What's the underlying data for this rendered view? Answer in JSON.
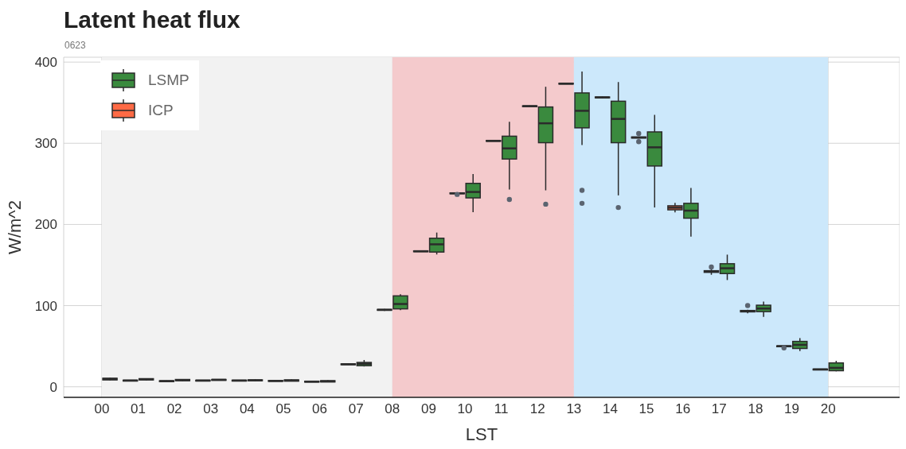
{
  "chart_data": {
    "type": "box",
    "title": "Latent heat flux",
    "subtitle": "0623",
    "xlabel": "LST",
    "ylabel": "W/m^2",
    "categories": [
      "00",
      "01",
      "02",
      "03",
      "04",
      "05",
      "06",
      "07",
      "08",
      "09",
      "10",
      "11",
      "12",
      "13",
      "14",
      "15",
      "16",
      "17",
      "18",
      "19",
      "20"
    ],
    "ylim": [
      -13,
      406
    ],
    "yticks": [
      0,
      100,
      200,
      300,
      400
    ],
    "grid": true,
    "legend": "top left",
    "bands": [
      {
        "axis": "x",
        "from": "00",
        "to": "08",
        "color": "#f2f2f2"
      },
      {
        "axis": "x",
        "from": "08",
        "to": "13",
        "color": "#f4cacc"
      },
      {
        "axis": "x",
        "from": "13",
        "to": "20",
        "color": "#cce8fb"
      }
    ],
    "series": [
      {
        "name": "LSMP",
        "color": "#3a8a3e",
        "boxes": [
          {
            "low": 8,
            "q1": 8.5,
            "median": 9.6,
            "q3": 10.5,
            "high": 11
          },
          {
            "low": 8,
            "q1": 8.5,
            "median": 9.3,
            "q3": 10,
            "high": 10.5
          },
          {
            "low": 7,
            "q1": 7.5,
            "median": 8.3,
            "q3": 9,
            "high": 9.5
          },
          {
            "low": 7.5,
            "q1": 8,
            "median": 8.6,
            "q3": 9,
            "high": 9.5
          },
          {
            "low": 7,
            "q1": 7.5,
            "median": 8,
            "q3": 8.5,
            "high": 9
          },
          {
            "low": 6.5,
            "q1": 7,
            "median": 7.7,
            "q3": 8.5,
            "high": 9
          },
          {
            "low": 5.5,
            "q1": 6,
            "median": 6.7,
            "q3": 7.5,
            "high": 8
          },
          {
            "low": 25,
            "q1": 26,
            "median": 28.4,
            "q3": 30,
            "high": 33
          },
          {
            "low": 94.5,
            "q1": 96,
            "median": 102,
            "q3": 112,
            "high": 114
          },
          {
            "low": 163,
            "q1": 166,
            "median": 175.5,
            "q3": 183,
            "high": 190
          },
          {
            "low": 215,
            "q1": 232.7,
            "median": 240,
            "q3": 250.6,
            "high": 262
          },
          {
            "low": 243,
            "q1": 280.6,
            "median": 293.7,
            "q3": 308.7,
            "high": 326.5,
            "outliers": [
              230.8
            ]
          },
          {
            "low": 242,
            "q1": 300.7,
            "median": 324.6,
            "q3": 344.7,
            "high": 369.6,
            "outliers": [
              225
            ]
          },
          {
            "low": 297.8,
            "q1": 319,
            "median": 340,
            "q3": 362,
            "high": 388.5,
            "outliers": [
              242,
              226
            ]
          },
          {
            "low": 235.8,
            "q1": 300.7,
            "median": 330,
            "q3": 351.8,
            "high": 375.4,
            "outliers": [
              220.9
            ]
          },
          {
            "low": 220.9,
            "q1": 272,
            "median": 295,
            "q3": 314,
            "high": 335
          },
          {
            "low": 185,
            "q1": 207.7,
            "median": 217,
            "q3": 226,
            "high": 245
          },
          {
            "low": 131.5,
            "q1": 139.5,
            "median": 146,
            "q3": 151.6,
            "high": 162.8
          },
          {
            "low": 86,
            "q1": 92.6,
            "median": 96.4,
            "q3": 100.5,
            "high": 105
          },
          {
            "low": 44,
            "q1": 47.2,
            "median": 51.7,
            "q3": 55.9,
            "high": 60
          },
          {
            "low": 19,
            "q1": 19.8,
            "median": 23.3,
            "q3": 29.4,
            "high": 32
          }
        ]
      },
      {
        "name": "ICP",
        "color": "#ff6a45",
        "boxes": [
          null,
          {
            "low": 7,
            "q1": 7.3,
            "median": 7.7,
            "q3": 8.1,
            "high": 8.4
          },
          {
            "low": 6.3,
            "q1": 6.6,
            "median": 7,
            "q3": 7.4,
            "high": 7.7
          },
          {
            "low": 7,
            "q1": 7.3,
            "median": 7.7,
            "q3": 8.1,
            "high": 8.4
          },
          {
            "low": 7,
            "q1": 7.3,
            "median": 7.7,
            "q3": 8.1,
            "high": 8.4
          },
          {
            "low": 6.6,
            "q1": 6.9,
            "median": 7.3,
            "q3": 7.7,
            "high": 8
          },
          {
            "low": 5.7,
            "q1": 6,
            "median": 6.4,
            "q3": 6.8,
            "high": 7.1
          },
          {
            "low": 27,
            "q1": 27.4,
            "median": 27.8,
            "q3": 28.2,
            "high": 28.6
          },
          {
            "low": 93.5,
            "q1": 94.3,
            "median": 94.8,
            "q3": 95.3,
            "high": 96
          },
          {
            "low": 166.3,
            "q1": 166.6,
            "median": 167,
            "q3": 167.4,
            "high": 167.7
          },
          {
            "low": 237.7,
            "q1": 238,
            "median": 238.4,
            "q3": 238.8,
            "high": 239.1,
            "outliers": [
              237
            ]
          },
          {
            "low": 302.3,
            "q1": 302.6,
            "median": 303,
            "q3": 303.4,
            "high": 303.7
          },
          {
            "low": 345,
            "q1": 345.3,
            "median": 345.7,
            "q3": 346.1,
            "high": 346.4
          },
          {
            "low": 372.8,
            "q1": 373.1,
            "median": 373.5,
            "q3": 373.9,
            "high": 374.2
          },
          {
            "low": 355.5,
            "q1": 356,
            "median": 356.5,
            "q3": 357,
            "high": 357.5
          },
          {
            "low": 306,
            "q1": 306.5,
            "median": 307.1,
            "q3": 307.7,
            "high": 308.2,
            "outliers": [
              312,
              302
            ]
          },
          {
            "low": 214.8,
            "q1": 218,
            "median": 220.6,
            "q3": 223,
            "high": 226.6
          },
          {
            "low": 138,
            "q1": 141,
            "median": 142,
            "q3": 143,
            "high": 145,
            "outliers": [
              147.5
            ]
          },
          {
            "low": 90.6,
            "q1": 92.3,
            "median": 93.2,
            "q3": 94,
            "high": 95,
            "outliers": [
              100
            ]
          },
          {
            "low": 49.2,
            "q1": 49.6,
            "median": 50,
            "q3": 50.4,
            "high": 50.8,
            "outliers": [
              48
            ]
          },
          {
            "low": 20.6,
            "q1": 21,
            "median": 21.4,
            "q3": 21.8,
            "high": 22.2
          }
        ]
      }
    ]
  }
}
